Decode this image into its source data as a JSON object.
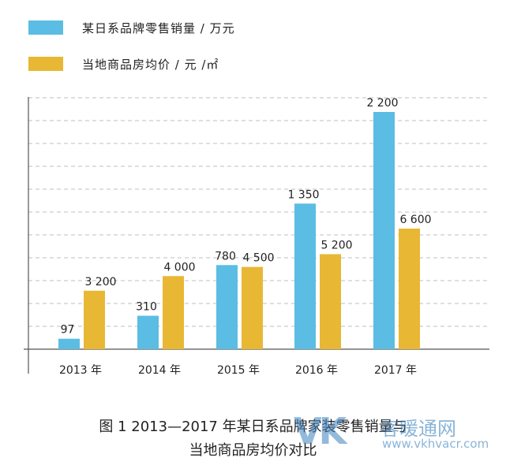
{
  "colors": {
    "series1": "#5bbde3",
    "series2": "#e8b733",
    "grid": "#bfbfbf",
    "axis": "#555555"
  },
  "chart_data": {
    "type": "bar",
    "categories": [
      "2013 年",
      "2014 年",
      "2015 年",
      "2016 年",
      "2017 年"
    ],
    "series": [
      {
        "name": "某日系品牌零售销量 / 万元",
        "values": [
          97,
          310,
          780,
          1350,
          2200
        ],
        "labels": [
          "97",
          "310",
          "780",
          "1 350",
          "2 200"
        ]
      },
      {
        "name": "当地商品房均价 / 元 /㎡",
        "values": [
          3200,
          4000,
          4500,
          5200,
          6600
        ],
        "labels": [
          "3 200",
          "4 000",
          "4 500",
          "5 200",
          "6 600"
        ]
      }
    ],
    "grid": true,
    "legend": "top-left"
  },
  "caption": {
    "line1": "图 1  2013—2017 年某日系品牌家装零售销量与",
    "line2": "当地商品房均价对比"
  },
  "watermark": {
    "logo": "VK",
    "name": "客暖通网",
    "url": "www.vkhvacr.com"
  }
}
